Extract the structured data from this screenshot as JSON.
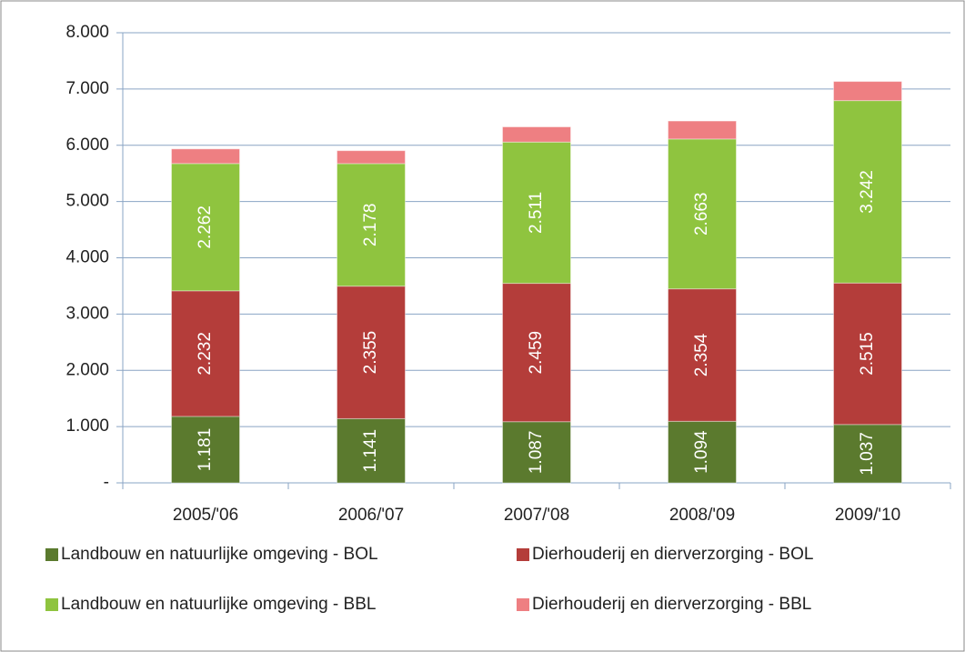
{
  "chart_data": {
    "type": "stacked-bar",
    "categories": [
      "2005/'06",
      "2006/'07",
      "2007/'08",
      "2008/'09",
      "2009/'10"
    ],
    "series": [
      {
        "name": "Landbouw en natuurlijke omgeving - BOL",
        "color": "#5b7a2e",
        "values": [
          1181,
          1141,
          1087,
          1094,
          1037
        ],
        "value_labels": [
          "1.181",
          "1.141",
          "1.087",
          "1.094",
          "1.037"
        ]
      },
      {
        "name": "Dierhouderij en dierverzorging - BOL",
        "color": "#b43d3a",
        "values": [
          2232,
          2355,
          2459,
          2354,
          2515
        ],
        "value_labels": [
          "2.232",
          "2.355",
          "2.459",
          "2.354",
          "2.515"
        ]
      },
      {
        "name": "Landbouw en natuurlijke omgeving - BBL",
        "color": "#8fc43f",
        "values": [
          2262,
          2178,
          2511,
          2663,
          3242
        ],
        "value_labels": [
          "2.262",
          "2.178",
          "2.511",
          "2.663",
          "3.242"
        ]
      },
      {
        "name": "Dierhouderij en dierverzorging - BBL",
        "color": "#ee7f82",
        "values": [
          260,
          230,
          270,
          320,
          340
        ]
      }
    ],
    "ylim": [
      0,
      8000
    ],
    "yticks": [
      {
        "value": 0,
        "label": "-"
      },
      {
        "value": 1000,
        "label": "1.000"
      },
      {
        "value": 2000,
        "label": "2.000"
      },
      {
        "value": 3000,
        "label": "3.000"
      },
      {
        "value": 4000,
        "label": "4.000"
      },
      {
        "value": 5000,
        "label": "5.000"
      },
      {
        "value": 6000,
        "label": "6.000"
      },
      {
        "value": 7000,
        "label": "7.000"
      },
      {
        "value": 8000,
        "label": "8.000"
      }
    ],
    "grid": true,
    "legend": "bottom"
  }
}
